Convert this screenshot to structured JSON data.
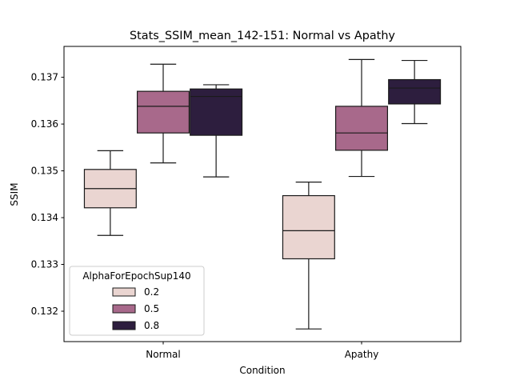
{
  "chart_data": {
    "type": "box",
    "title": "Stats_SSIM_mean_142-151: Normal vs Apathy",
    "xlabel": "Condition",
    "ylabel": "SSIM",
    "categories": [
      "Normal",
      "Apathy"
    ],
    "ylim": [
      0.13135,
      0.13766
    ],
    "yticks": [
      0.132,
      0.133,
      0.134,
      0.135,
      0.136,
      0.137
    ],
    "ytick_labels": [
      "0.132",
      "0.133",
      "0.134",
      "0.135",
      "0.136",
      "0.137"
    ],
    "legend": {
      "title": "AlphaForEpochSup140",
      "position": "lower-left"
    },
    "series": [
      {
        "name": "0.2",
        "color": "#ead5d1",
        "boxes": [
          {
            "whislo": 0.13362,
            "q1": 0.13421,
            "med": 0.13462,
            "q3": 0.13503,
            "whishi": 0.13543
          },
          {
            "whislo": 0.13162,
            "q1": 0.13312,
            "med": 0.13372,
            "q3": 0.13447,
            "whishi": 0.13476
          }
        ]
      },
      {
        "name": "0.5",
        "color": "#a8698b",
        "boxes": [
          {
            "whislo": 0.13517,
            "q1": 0.13581,
            "med": 0.13638,
            "q3": 0.1367,
            "whishi": 0.13728
          },
          {
            "whislo": 0.13488,
            "q1": 0.13544,
            "med": 0.13581,
            "q3": 0.13638,
            "whishi": 0.13738
          }
        ]
      },
      {
        "name": "0.8",
        "color": "#2d1e3e",
        "boxes": [
          {
            "whislo": 0.13487,
            "q1": 0.13576,
            "med": 0.13659,
            "q3": 0.13675,
            "whishi": 0.13684
          },
          {
            "whislo": 0.13601,
            "q1": 0.13643,
            "med": 0.13677,
            "q3": 0.13695,
            "whishi": 0.13736
          }
        ]
      }
    ]
  }
}
